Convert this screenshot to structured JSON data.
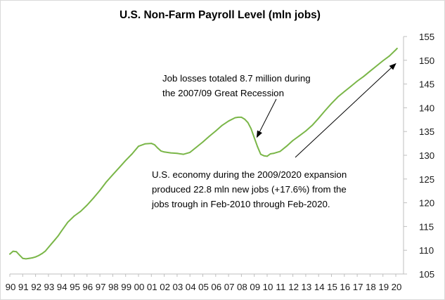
{
  "chart_data": {
    "type": "line",
    "title": "U.S. Non-Farm Payroll Level (mln jobs)",
    "xlabel": "",
    "ylabel": "",
    "x_tick_labels": [
      "90",
      "91",
      "92",
      "93",
      "94",
      "95",
      "96",
      "97",
      "98",
      "99",
      "00",
      "01",
      "02",
      "03",
      "04",
      "05",
      "06",
      "07",
      "08",
      "09",
      "10",
      "11",
      "12",
      "13",
      "14",
      "15",
      "16",
      "17",
      "18",
      "19",
      "20"
    ],
    "xlim": [
      1990,
      2020.6
    ],
    "y_ticks": [
      105,
      110,
      115,
      120,
      125,
      130,
      135,
      140,
      145,
      150,
      155
    ],
    "ylim": [
      105,
      155
    ],
    "y_axis_position": "right",
    "grid": false,
    "legend": "none",
    "line_color": "#7ab648",
    "series": [
      {
        "x": [
          1990.0,
          1990.25,
          1990.5,
          1990.75,
          1991.0,
          1991.25,
          1991.5,
          1991.75,
          1992.0,
          1992.25,
          1992.5,
          1992.75,
          1993.0,
          1993.25,
          1993.5,
          1993.75,
          1994.0,
          1994.5,
          1995.0,
          1995.5,
          1996.0,
          1996.5,
          1997.0,
          1997.5,
          1998.0,
          1998.5,
          1999.0,
          1999.5,
          2000.0,
          2000.5,
          2001.0,
          2001.25,
          2001.5,
          2001.75,
          2002.0,
          2002.5,
          2003.0,
          2003.5,
          2004.0,
          2004.5,
          2005.0,
          2005.5,
          2006.0,
          2006.5,
          2007.0,
          2007.5,
          2007.75,
          2008.0,
          2008.25,
          2008.5,
          2008.75,
          2009.0,
          2009.25,
          2009.5,
          2009.75,
          2010.0,
          2010.25,
          2010.5,
          2010.75,
          2011.0,
          2011.5,
          2012.0,
          2012.5,
          2013.0,
          2013.5,
          2014.0,
          2014.5,
          2015.0,
          2015.5,
          2016.0,
          2016.5,
          2017.0,
          2017.5,
          2018.0,
          2018.5,
          2019.0,
          2019.5,
          2020.0,
          2020.1
        ],
        "values": [
          109.2,
          109.8,
          109.7,
          109.0,
          108.3,
          108.2,
          108.3,
          108.4,
          108.6,
          108.9,
          109.3,
          109.8,
          110.6,
          111.4,
          112.2,
          113.0,
          114.0,
          115.9,
          117.2,
          118.2,
          119.5,
          121.0,
          122.6,
          124.4,
          125.9,
          127.4,
          128.9,
          130.3,
          131.9,
          132.4,
          132.5,
          132.2,
          131.5,
          130.9,
          130.7,
          130.5,
          130.4,
          130.2,
          130.6,
          131.7,
          132.8,
          134.0,
          135.1,
          136.3,
          137.2,
          137.9,
          138.0,
          138.0,
          137.6,
          136.9,
          135.6,
          133.7,
          131.8,
          130.2,
          129.9,
          129.8,
          130.3,
          130.4,
          130.6,
          130.8,
          131.9,
          133.1,
          134.1,
          135.1,
          136.3,
          137.8,
          139.4,
          140.9,
          142.3,
          143.4,
          144.5,
          145.6,
          146.6,
          147.7,
          148.8,
          149.9,
          150.9,
          152.2,
          152.5
        ]
      }
    ],
    "annotations": [
      {
        "lines": [
          "Job losses totaled 8.7 million during",
          "the 2007/09 Great Recession"
        ],
        "arrow_to": [
          2009.2,
          133.8
        ]
      },
      {
        "lines": [
          "U.S. economy during the 2009/2020 expansion",
          "produced 22.8 mln new jobs (+17.6%) from the",
          "jobs trough in Feb-2010 through Feb-2020."
        ],
        "arrow_to": [
          2020.0,
          149.3
        ]
      }
    ]
  }
}
